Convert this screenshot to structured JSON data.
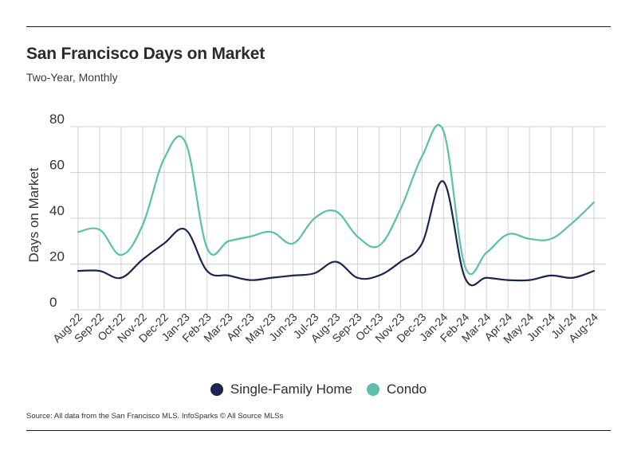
{
  "header": {
    "title": "San Francisco Days on Market",
    "subtitle": "Two-Year, Monthly"
  },
  "footer": {
    "source": "Source:  All data from the San Francisco MLS. InfoSparks © All Source MLSs"
  },
  "colors": {
    "single_family": "#1b2550",
    "condo": "#5bbfa9",
    "grid": "#d2d2d2"
  },
  "chart_data": {
    "type": "line",
    "title": "San Francisco Days on Market",
    "subtitle": "Two-Year, Monthly",
    "xlabel": "",
    "ylabel": "Days on Market",
    "ylim": [
      0,
      80
    ],
    "yticks": [
      0,
      20,
      40,
      60,
      80
    ],
    "grid": true,
    "legend_position": "bottom-center",
    "categories": [
      "Aug-22",
      "Sep-22",
      "Oct-22",
      "Nov-22",
      "Dec-22",
      "Jan-23",
      "Feb-23",
      "Mar-23",
      "Apr-23",
      "May-23",
      "Jun-23",
      "Jul-23",
      "Aug-23",
      "Sep-23",
      "Oct-23",
      "Nov-23",
      "Dec-23",
      "Jan-24",
      "Feb-24",
      "Mar-24",
      "Apr-24",
      "May-24",
      "Jun-24",
      "Jul-24",
      "Aug-24"
    ],
    "series": [
      {
        "name": "Single-Family Home",
        "color": "#1b2550",
        "values": [
          17,
          17,
          14,
          22,
          29,
          35,
          17,
          15,
          13,
          14,
          15,
          16,
          21,
          14,
          15,
          21,
          29,
          56,
          14,
          14,
          13,
          13,
          15,
          14,
          17
        ]
      },
      {
        "name": "Condo",
        "color": "#5bbfa9",
        "values": [
          34,
          35,
          24,
          37,
          66,
          73,
          27,
          30,
          32,
          34,
          29,
          40,
          43,
          32,
          28,
          44,
          67,
          78,
          19,
          25,
          33,
          31,
          31,
          38,
          47
        ]
      }
    ]
  }
}
